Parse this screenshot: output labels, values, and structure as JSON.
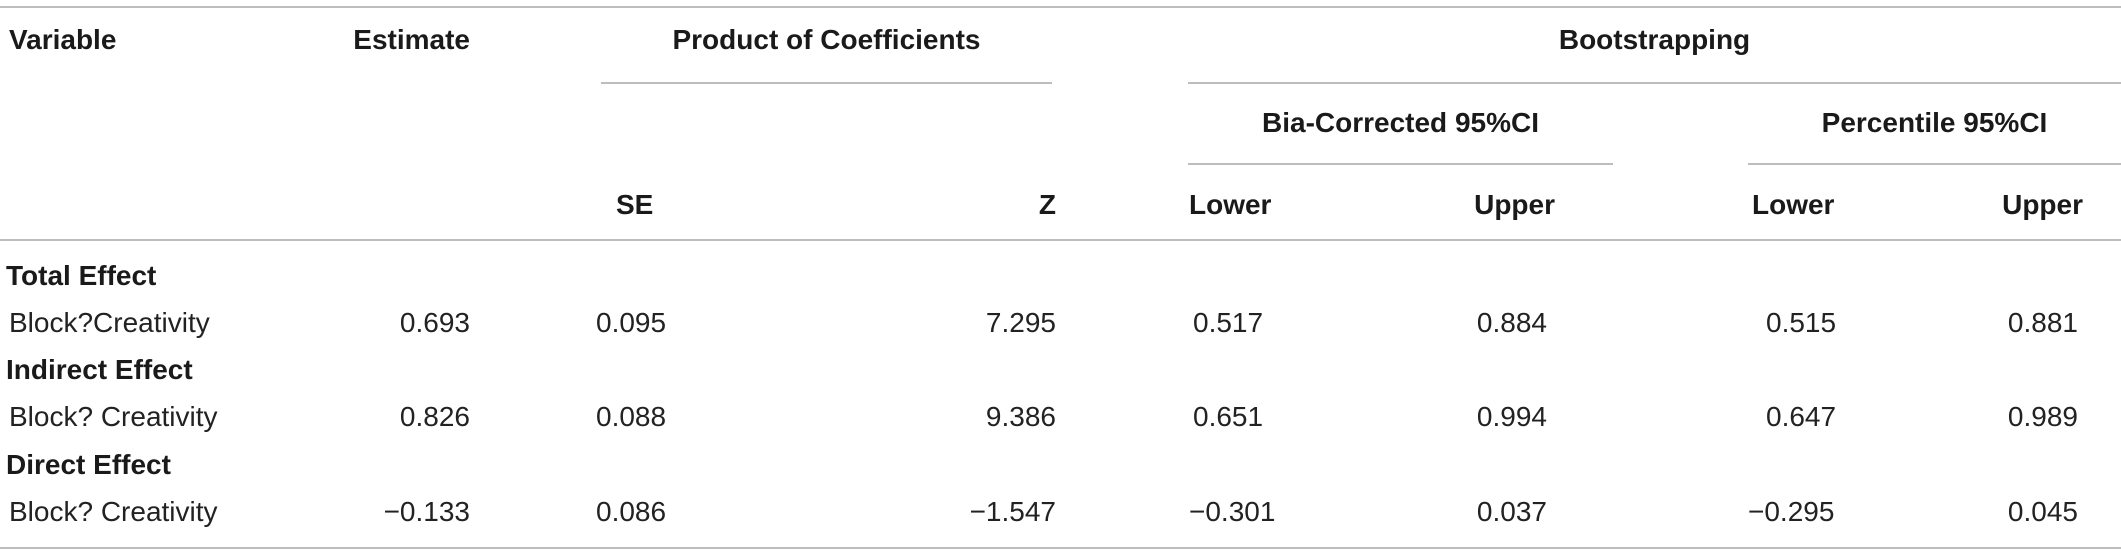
{
  "headers": {
    "variable": "Variable",
    "estimate": "Estimate",
    "product_of_coefficients": "Product of Coefficients",
    "bootstrapping": "Bootstrapping",
    "bias_corrected": "Bia-Corrected 95%CI",
    "percentile": "Percentile 95%CI",
    "se": "SE",
    "z": "Z",
    "bc_lower": "Lower",
    "bc_upper": "Upper",
    "pc_lower": "Lower",
    "pc_upper": "Upper"
  },
  "sections": [
    {
      "title": "Total Effect",
      "row": {
        "variable": "Block?Creativity",
        "estimate": "0.693",
        "se": "0.095",
        "z": "7.295",
        "bc_lower": "0.517",
        "bc_upper": "0.884",
        "pc_lower": "0.515",
        "pc_upper": "0.881"
      }
    },
    {
      "title": "Indirect Effect",
      "row": {
        "variable": "Block? Creativity",
        "estimate": "0.826",
        "se": "0.088",
        "z": "9.386",
        "bc_lower": "0.651",
        "bc_upper": "0.994",
        "pc_lower": "0.647",
        "pc_upper": "0.989"
      }
    },
    {
      "title": "Direct Effect",
      "row": {
        "variable": "Block? Creativity",
        "estimate": "−0.133",
        "se": "0.086",
        "z": "−1.547",
        "bc_lower": "−0.301",
        "bc_upper": "0.037",
        "pc_lower": "−0.295",
        "pc_upper": "0.045"
      }
    }
  ]
}
